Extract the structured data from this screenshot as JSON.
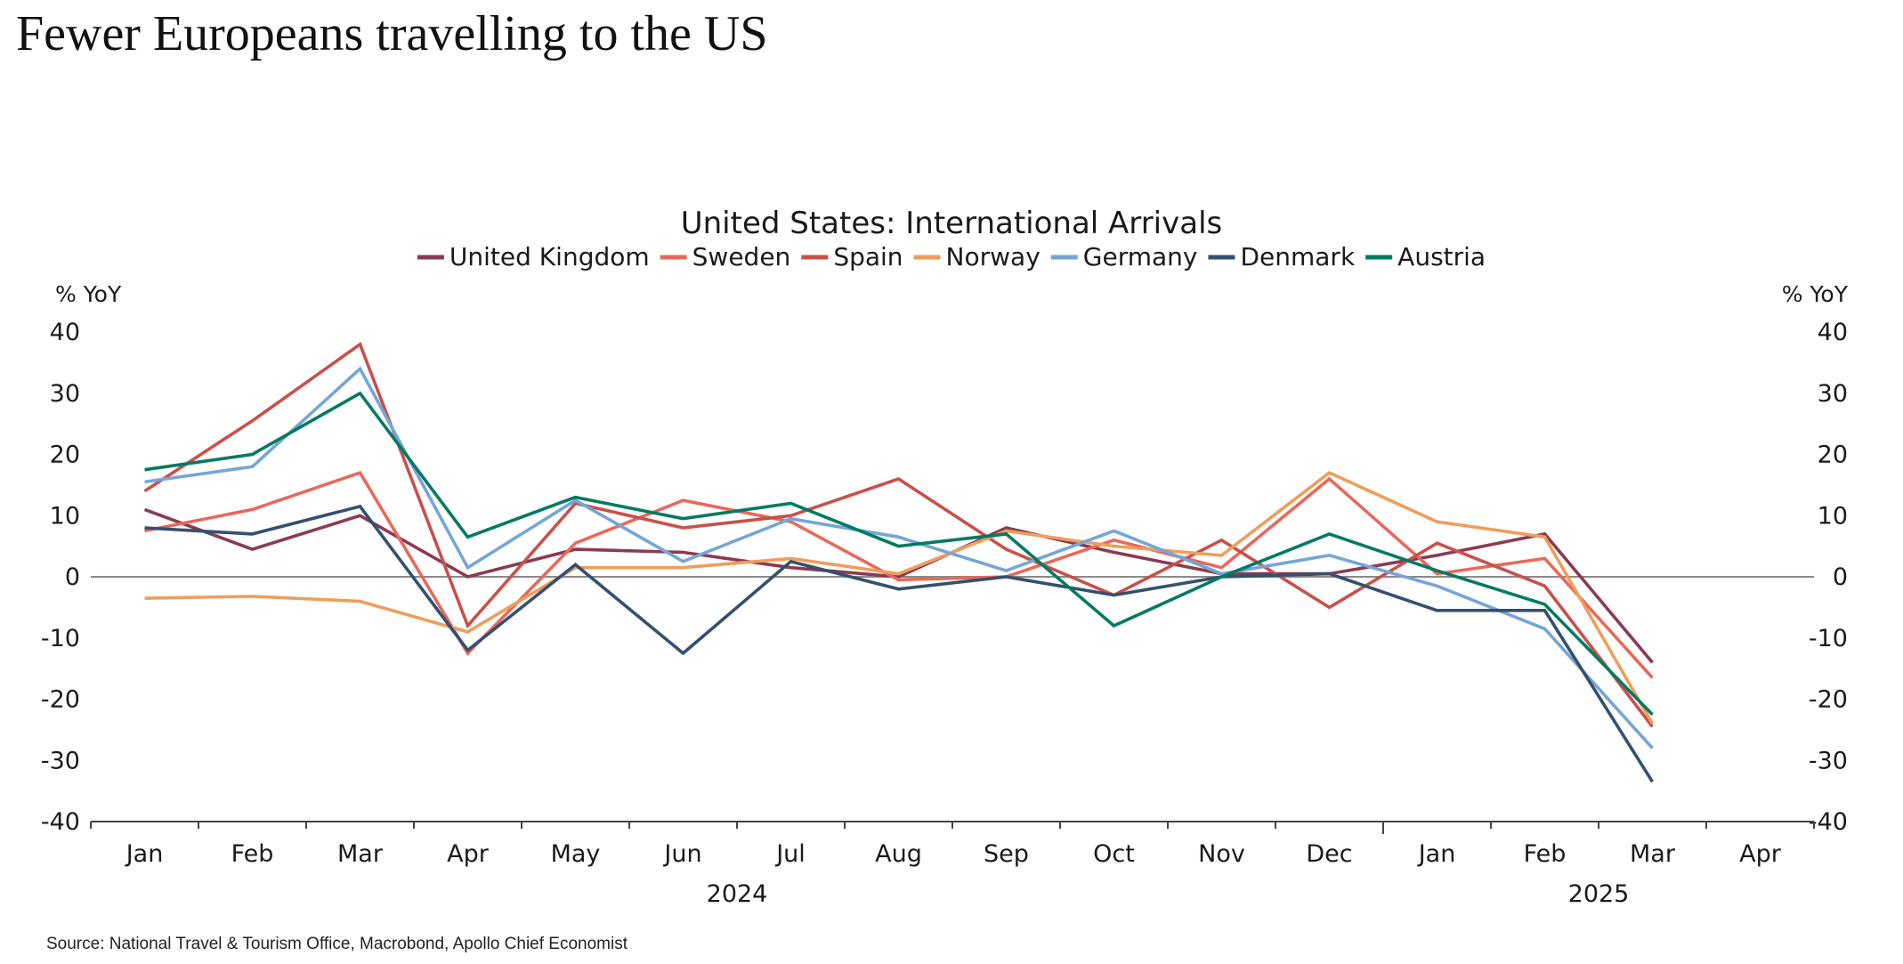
{
  "page": {
    "title": "Fewer Europeans travelling to the US",
    "source": "Source: National Travel & Tourism Office, Macrobond, Apollo Chief Economist"
  },
  "chart_data": {
    "type": "line",
    "title": "United States: International Arrivals",
    "ylabel_left": "% YoY",
    "ylabel_right": "% YoY",
    "xlabel": "",
    "ylim": [
      -40,
      40
    ],
    "yticks": [
      40,
      30,
      20,
      10,
      0,
      -10,
      -20,
      -30,
      -40
    ],
    "x": [
      "Jan",
      "Feb",
      "Mar",
      "Apr",
      "May",
      "Jun",
      "Jul",
      "Aug",
      "Sep",
      "Oct",
      "Nov",
      "Dec",
      "Jan",
      "Feb",
      "Mar",
      "Apr"
    ],
    "year_labels": [
      {
        "label": "2024",
        "span": [
          0,
          11
        ]
      },
      {
        "label": "2025",
        "span": [
          12,
          15
        ]
      }
    ],
    "legend_position": "top-center",
    "zero_line": true,
    "series": [
      {
        "name": "United Kingdom",
        "color": "#8B3A52",
        "values": [
          11,
          4.5,
          10,
          0,
          4.5,
          4,
          1.5,
          0,
          8,
          4,
          0.5,
          0.5,
          3.5,
          7,
          -14
        ]
      },
      {
        "name": "Sweden",
        "color": "#E8695A",
        "values": [
          7.5,
          11,
          17,
          -12.5,
          5.5,
          12.5,
          9,
          -0.5,
          0,
          6,
          1.5,
          16,
          0.5,
          3,
          -16.5
        ]
      },
      {
        "name": "Spain",
        "color": "#C9504A",
        "values": [
          14,
          25.5,
          38,
          -8,
          12,
          8,
          10,
          16,
          4.5,
          -3,
          6,
          -5,
          5.5,
          -1.5,
          -24.5
        ]
      },
      {
        "name": "Norway",
        "color": "#EE9E5C",
        "values": [
          -3.5,
          -3.2,
          -4,
          -9,
          1.5,
          1.5,
          3,
          0.5,
          7.5,
          5,
          3.5,
          17,
          9,
          6.5,
          -24
        ]
      },
      {
        "name": "Germany",
        "color": "#74A6D6",
        "values": [
          15.5,
          18,
          34,
          1.5,
          12.5,
          2.5,
          9.5,
          6.5,
          1,
          7.5,
          0.5,
          3.5,
          -1.5,
          -8.5,
          -28
        ]
      },
      {
        "name": "Denmark",
        "color": "#34506F",
        "values": [
          8,
          7,
          11.5,
          -12,
          2,
          -12.5,
          2.5,
          -2,
          0,
          -3,
          0,
          0.5,
          -5.5,
          -5.5,
          -33.5
        ]
      },
      {
        "name": "Austria",
        "color": "#057A62",
        "values": [
          17.5,
          20,
          30,
          6.5,
          13,
          9.5,
          12,
          5,
          7,
          -8,
          0,
          7,
          1,
          -4.5,
          -22.5
        ]
      }
    ]
  }
}
